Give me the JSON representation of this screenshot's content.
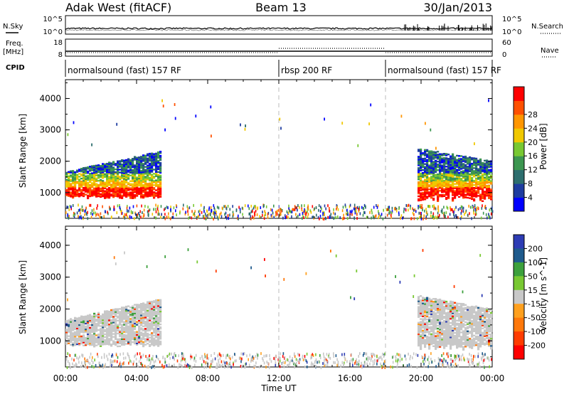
{
  "header": {
    "radar": "Adak West (fitACF)",
    "beam": "Beam 13",
    "date": "30/Jan/2013"
  },
  "side_labels": {
    "nsky": "N.Sky",
    "nsearch": "N.Search",
    "freq_a": "Freq.",
    "freq_b": "[MHz]",
    "nave": "Nave",
    "cpid": "CPID"
  },
  "noise_axis": {
    "left_top": "10^5",
    "left_bottom": "10^0",
    "right_top": "10^5",
    "right_bottom": "10^0"
  },
  "freq_axis": {
    "left_top": "18",
    "left_bottom": "8",
    "right_top": "60",
    "right_bottom": "0"
  },
  "cpid_segments": [
    {
      "label": "normalsound (fast) 157 RF",
      "start_h": 0,
      "end_h": 12
    },
    {
      "label": "rbsp 200 RF",
      "start_h": 12,
      "end_h": 18
    },
    {
      "label": "normalsound (fast) 157 RF",
      "start_h": 18,
      "end_h": 24
    }
  ],
  "x_axis": {
    "label": "Time UT",
    "ticks": [
      "00:00",
      "04:00",
      "08:00",
      "12:00",
      "16:00",
      "20:00",
      "00:00"
    ]
  },
  "y_axis": {
    "label": "Slant Range [km]",
    "ticks": [
      "1000",
      "2000",
      "3000",
      "4000"
    ]
  },
  "power_colorbar": {
    "label": "Power [dB]",
    "ticks": [
      "4",
      "8",
      "12",
      "16",
      "20",
      "24",
      "28"
    ],
    "colors": [
      "#0000ff",
      "#1e3ca0",
      "#2d6e6e",
      "#3c9650",
      "#78c832",
      "#f0c800",
      "#ff9600",
      "#ff5000",
      "#ff0000"
    ]
  },
  "velocity_colorbar": {
    "label": "Velocity [m s^-1]",
    "ticks": [
      "200",
      "100",
      "50",
      "15",
      "-15",
      "-50",
      "-100",
      "-200"
    ],
    "colors": [
      "#2d3cb4",
      "#1e5a8c",
      "#3ca03c",
      "#78c832",
      "#c8c8c8",
      "#ffa01e",
      "#ff780a",
      "#ff3c00",
      "#ff0000"
    ]
  },
  "chart_data": {
    "type": "heatmap",
    "title": "Adak West (fitACF)  Beam 13  30/Jan/2013",
    "xlabel": "Time UT",
    "ylabel": "Slant Range [km]",
    "xlim": [
      0,
      24
    ],
    "ylim": [
      180,
      4600
    ],
    "panels": [
      {
        "name": "Power [dB]",
        "zlim": [
          0,
          30
        ],
        "regions": [
          {
            "t": [
              0.0,
              5.3
            ],
            "range_km": [
              800,
              1400
            ],
            "value_db": 26
          },
          {
            "t": [
              0.0,
              5.3
            ],
            "range_km": [
              1400,
              2300
            ],
            "value_db": 10
          },
          {
            "t": [
              19.8,
              24.0
            ],
            "range_km": [
              700,
              1300
            ],
            "value_db": 26
          },
          {
            "t": [
              19.8,
              24.0
            ],
            "range_km": [
              1300,
              2400
            ],
            "value_db": 12
          },
          {
            "t": [
              0.0,
              24.0
            ],
            "range_km": [
              180,
              600
            ],
            "value_db": 20
          }
        ]
      },
      {
        "name": "Velocity [m s^-1]",
        "zlim": [
          -200,
          200
        ],
        "regions": [
          {
            "t": [
              0.0,
              5.3
            ],
            "range_km": [
              800,
              2000
            ],
            "value_ms": 0
          },
          {
            "t": [
              19.8,
              24.0
            ],
            "range_km": [
              800,
              2000
            ],
            "value_ms": 0
          },
          {
            "t": [
              0.0,
              24.0
            ],
            "range_km": [
              180,
              600
            ],
            "value_ms": -20
          }
        ]
      }
    ],
    "noise": {
      "nsky_level": "10^1",
      "nsearch_level": "10^1"
    },
    "frequency_mhz": 10.5,
    "nave": {
      "normalsound": 20,
      "rbsp": 40
    }
  }
}
